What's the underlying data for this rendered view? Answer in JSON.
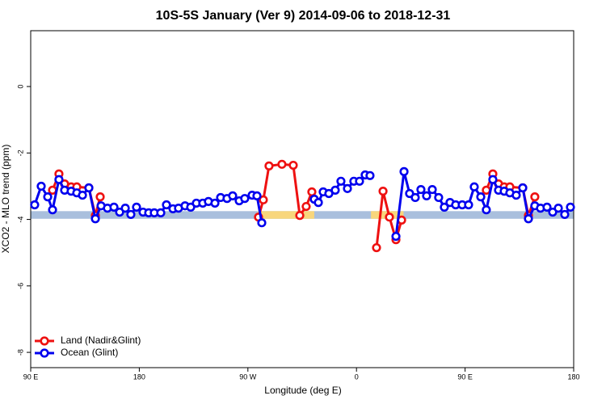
{
  "chart_data": {
    "type": "line",
    "title": "10S-5S January (Ver 9)   2014-09-06 to 2018-12-31",
    "x_label": "Longitude (deg E)",
    "y_label": "XCO2 - MLO trend (ppm)",
    "xlim": [
      90,
      540
    ],
    "ylim": [
      -8.46,
      1.68
    ],
    "xticks": [
      {
        "value": 90,
        "label": "90 E"
      },
      {
        "value": 180,
        "label": "180"
      },
      {
        "value": 270,
        "label": "90 W"
      },
      {
        "value": 360,
        "label": "0"
      },
      {
        "value": 450,
        "label": "90 E"
      },
      {
        "value": 540,
        "label": "180"
      }
    ],
    "yticks": [
      0,
      -2,
      -4,
      -6,
      -8
    ],
    "legend": "bottom-left",
    "surface_band": {
      "ylim": [
        -3.98,
        -3.75
      ],
      "ocean_color": "#a9bfdd",
      "land_color": "#f8d67c",
      "land_segments": [
        [
          278,
          325
        ],
        [
          372,
          399
        ]
      ]
    },
    "series": [
      {
        "name": "Land (Nadir&Glint)",
        "color": "#ee1111",
        "x": [
          108.1,
          113.4,
          118.1,
          123.5,
          128.2,
          138.2,
          143.6,
          147.6,
          null,
          278.8,
          282.8,
          287.5,
          298.2,
          307.6,
          313.0,
          318.3,
          323.0,
          null,
          376.6,
          382.0,
          387.3,
          392.7,
          397.4,
          null,
          467.6,
          473.0,
          477.7,
          482.4,
          487.1,
          497.8,
          502.5,
          507.8
        ],
        "values": [
          -3.12,
          -2.63,
          -2.93,
          -3.02,
          -3.02,
          -3.05,
          -3.88,
          -3.32,
          null,
          -3.93,
          -3.41,
          -2.39,
          -2.34,
          -2.37,
          -3.88,
          -3.61,
          -3.17,
          null,
          -4.85,
          -3.15,
          -3.93,
          -4.61,
          -4.02,
          null,
          -3.12,
          -2.63,
          -2.93,
          -3.02,
          -3.02,
          -3.05,
          -3.88,
          -3.32
        ]
      },
      {
        "name": "Ocean (Glint)",
        "color": "#0000ee",
        "x": [
          93.3,
          98.7,
          104.1,
          108.1,
          113.4,
          118.1,
          123.5,
          128.2,
          132.9,
          138.2,
          143.6,
          148.3,
          153.6,
          159.0,
          163.7,
          168.4,
          173.0,
          177.7,
          183.1,
          187.8,
          192.4,
          197.8,
          202.5,
          207.9,
          212.5,
          217.9,
          222.6,
          227.3,
          232.6,
          237.3,
          242.7,
          247.4,
          252.7,
          257.4,
          262.8,
          267.4,
          273.5,
          277.5,
          281.5,
          null,
          325.0,
          328.4,
          332.4,
          337.1,
          342.4,
          347.1,
          352.5,
          357.8,
          362.5,
          367.2,
          371.2,
          null,
          392.7,
          399.4,
          404.0,
          408.7,
          413.4,
          418.1,
          422.8,
          428.1,
          432.8,
          437.5,
          442.2,
          447.6,
          452.9,
          457.6,
          463.0,
          467.6,
          473.0,
          477.7,
          482.4,
          487.1,
          492.4,
          497.8,
          502.5,
          507.8,
          512.5,
          517.9,
          522.6,
          527.3,
          532.6,
          537.3
        ],
        "values": [
          -3.56,
          -3.0,
          -3.32,
          -3.71,
          -2.8,
          -3.12,
          -3.15,
          -3.2,
          -3.27,
          -3.05,
          -3.98,
          -3.59,
          -3.66,
          -3.63,
          -3.78,
          -3.66,
          -3.85,
          -3.63,
          -3.78,
          -3.8,
          -3.8,
          -3.8,
          -3.56,
          -3.68,
          -3.66,
          -3.59,
          -3.63,
          -3.51,
          -3.51,
          -3.46,
          -3.51,
          -3.34,
          -3.37,
          -3.29,
          -3.44,
          -3.37,
          -3.27,
          -3.29,
          -4.1,
          null,
          -3.39,
          -3.49,
          -3.17,
          -3.22,
          -3.12,
          -2.85,
          -3.07,
          -2.85,
          -2.85,
          -2.66,
          -2.68,
          null,
          -4.51,
          -2.56,
          -3.22,
          -3.34,
          -3.1,
          -3.29,
          -3.1,
          -3.34,
          -3.63,
          -3.49,
          -3.56,
          -3.56,
          -3.56,
          -3.02,
          -3.32,
          -3.71,
          -2.8,
          -3.12,
          -3.15,
          -3.2,
          -3.27,
          -3.05,
          -3.98,
          -3.59,
          -3.66,
          -3.63,
          -3.78,
          -3.66,
          -3.85,
          -3.63
        ]
      }
    ]
  }
}
